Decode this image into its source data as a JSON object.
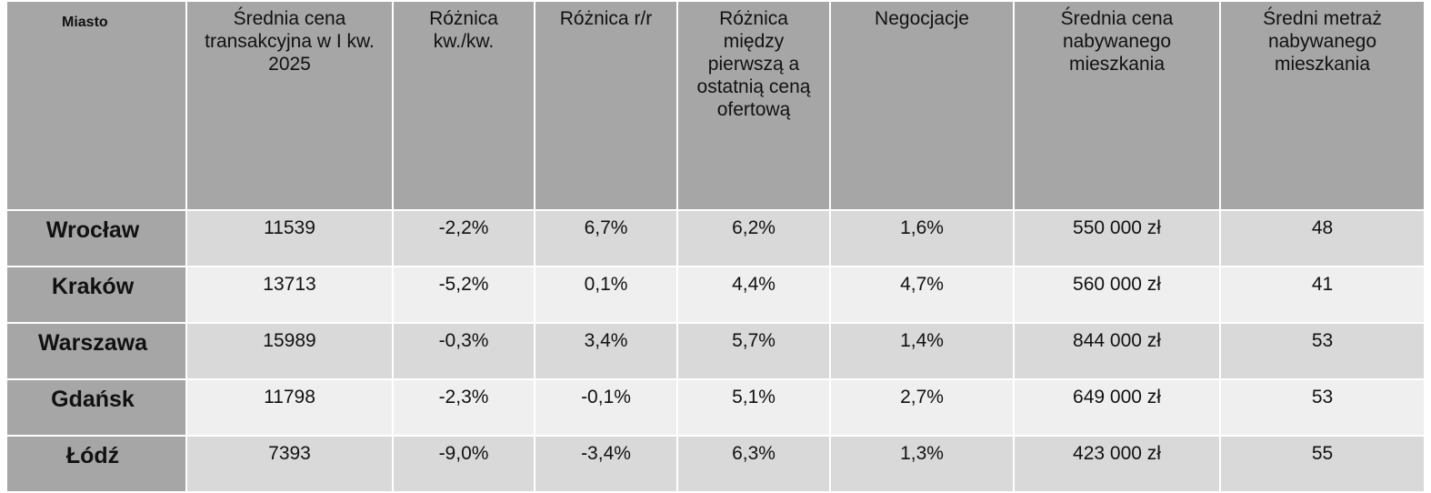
{
  "table": {
    "headers": [
      "Miasto",
      "Średnia cena transakcyjna w I kw. 2025",
      "Różnica kw./kw.",
      "Różnica r/r",
      "Różnica między pierwszą a ostatnią ceną ofertową",
      "Negocjacje",
      "Średnia cena nabywanego mieszkania",
      "Średni metraż nabywanego mieszkania"
    ],
    "rows": [
      [
        "Wrocław",
        "11539",
        "-2,2%",
        "6,7%",
        "6,2%",
        "1,6%",
        "550 000 zł",
        "48"
      ],
      [
        "Kraków",
        "13713",
        "-5,2%",
        "0,1%",
        "4,4%",
        "4,7%",
        "560 000 zł",
        "41"
      ],
      [
        "Warszawa",
        "15989",
        "-0,3%",
        "3,4%",
        "5,7%",
        "1,4%",
        "844 000 zł",
        "53"
      ],
      [
        "Gdańsk",
        "11798",
        "-2,3%",
        "-0,1%",
        "5,1%",
        "2,7%",
        "649 000 zł",
        "53"
      ],
      [
        "Łódź",
        "7393",
        "-9,0%",
        "-3,4%",
        "6,3%",
        "1,3%",
        "423 000 zł",
        "55"
      ]
    ]
  },
  "colors": {
    "header_bg": "#a6a6a6",
    "row_odd_bg": "#d9d9d9",
    "row_even_bg": "#efefef",
    "border": "#ffffff"
  }
}
